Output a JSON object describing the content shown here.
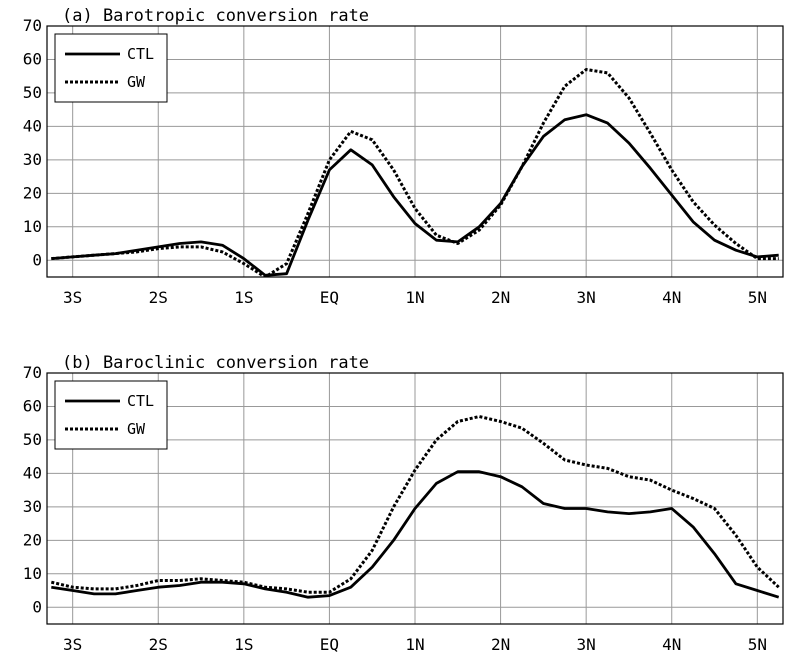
{
  "chart_data": [
    {
      "type": "line",
      "title": "(a) Barotropic conversion rate",
      "xlabel": "",
      "ylabel": "",
      "categories": [
        "3S",
        "2S",
        "1S",
        "EQ",
        "1N",
        "2N",
        "3N",
        "4N",
        "5N"
      ],
      "x_range": [
        -3.3,
        5.3
      ],
      "ylim": [
        -5,
        70
      ],
      "yticks": [
        0,
        10,
        20,
        30,
        40,
        50,
        60,
        70
      ],
      "grid": true,
      "legend_position": "top-left",
      "x": [
        -3.25,
        -3.0,
        -2.75,
        -2.5,
        -2.25,
        -2.0,
        -1.75,
        -1.5,
        -1.25,
        -1.0,
        -0.75,
        -0.5,
        -0.25,
        0.0,
        0.25,
        0.5,
        0.75,
        1.0,
        1.25,
        1.5,
        1.75,
        2.0,
        2.25,
        2.5,
        2.75,
        3.0,
        3.25,
        3.5,
        3.75,
        4.0,
        4.25,
        4.5,
        4.75,
        5.0,
        5.25
      ],
      "series": [
        {
          "name": "CTL",
          "style": "solid",
          "values": [
            0.5,
            1.0,
            1.5,
            2.0,
            3.0,
            4.0,
            5.0,
            5.5,
            4.5,
            0.5,
            -4.5,
            -4.0,
            12.0,
            27.0,
            33.0,
            28.5,
            19.0,
            11.0,
            6.0,
            5.5,
            10.0,
            17.0,
            28.0,
            37.0,
            42.0,
            43.5,
            41.0,
            35.0,
            27.5,
            19.5,
            11.5,
            6.0,
            3.0,
            1.0,
            1.5
          ]
        },
        {
          "name": "GW",
          "style": "dotted",
          "values": [
            0.5,
            1.0,
            1.5,
            2.0,
            2.5,
            3.5,
            4.0,
            4.0,
            2.5,
            -1.0,
            -5.0,
            -1.0,
            14.0,
            30.0,
            38.5,
            36.0,
            27.0,
            15.5,
            7.5,
            5.0,
            9.0,
            16.5,
            28.0,
            41.0,
            52.0,
            57.0,
            56.0,
            48.5,
            38.0,
            27.0,
            17.5,
            10.5,
            5.0,
            0.5,
            0.5
          ]
        }
      ]
    },
    {
      "type": "line",
      "title": "(b) Baroclinic conversion rate",
      "xlabel": "",
      "ylabel": "",
      "categories": [
        "3S",
        "2S",
        "1S",
        "EQ",
        "1N",
        "2N",
        "3N",
        "4N",
        "5N"
      ],
      "x_range": [
        -3.3,
        5.3
      ],
      "ylim": [
        -5,
        70
      ],
      "yticks": [
        0,
        10,
        20,
        30,
        40,
        50,
        60,
        70
      ],
      "grid": true,
      "legend_position": "top-left",
      "x": [
        -3.25,
        -3.0,
        -2.75,
        -2.5,
        -2.25,
        -2.0,
        -1.75,
        -1.5,
        -1.25,
        -1.0,
        -0.75,
        -0.5,
        -0.25,
        0.0,
        0.25,
        0.5,
        0.75,
        1.0,
        1.25,
        1.5,
        1.75,
        2.0,
        2.25,
        2.5,
        2.75,
        3.0,
        3.25,
        3.5,
        3.75,
        4.0,
        4.25,
        4.5,
        4.75,
        5.0,
        5.25
      ],
      "series": [
        {
          "name": "CTL",
          "style": "solid",
          "values": [
            6.0,
            5.0,
            4.0,
            4.0,
            5.0,
            6.0,
            6.5,
            7.5,
            7.5,
            7.0,
            5.5,
            4.5,
            3.0,
            3.5,
            6.0,
            12.0,
            20.0,
            29.5,
            37.0,
            40.5,
            40.5,
            39.0,
            36.0,
            31.0,
            29.5,
            29.5,
            28.5,
            28.0,
            28.5,
            29.5,
            24.0,
            16.0,
            7.0,
            5.0,
            3.0
          ]
        },
        {
          "name": "GW",
          "style": "dotted",
          "values": [
            7.5,
            6.0,
            5.5,
            5.5,
            6.5,
            8.0,
            8.0,
            8.5,
            8.0,
            7.5,
            6.0,
            5.5,
            4.5,
            4.5,
            8.5,
            17.0,
            30.0,
            41.0,
            50.0,
            55.5,
            57.0,
            55.5,
            53.5,
            49.0,
            44.0,
            42.5,
            41.5,
            39.0,
            38.0,
            35.0,
            32.5,
            29.5,
            21.5,
            12.0,
            6.0
          ]
        }
      ]
    }
  ],
  "colors": {
    "line": "#000000",
    "grid": "#999999",
    "background": "#ffffff"
  }
}
